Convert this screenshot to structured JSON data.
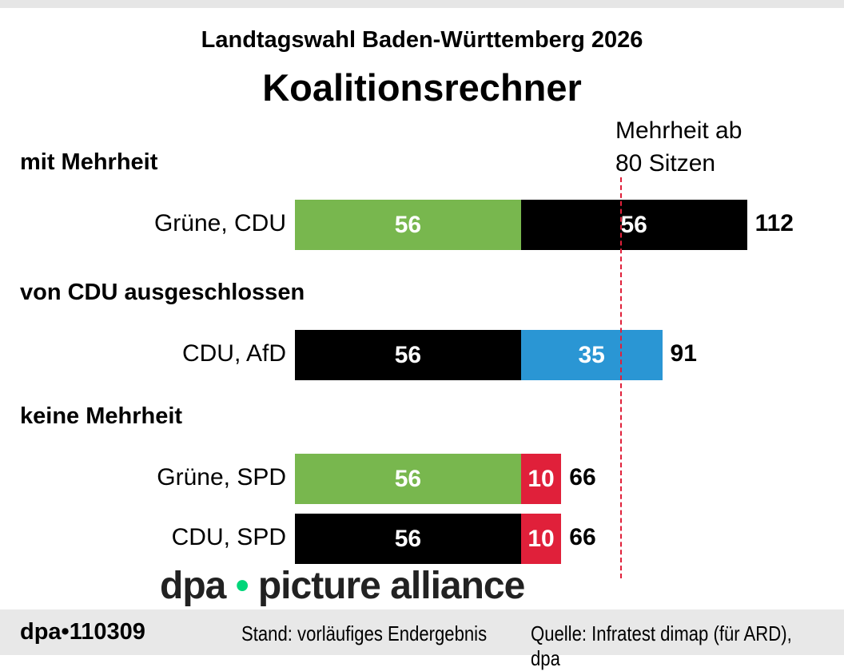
{
  "chart_data": {
    "type": "bar",
    "stacked": true,
    "orientation": "horizontal",
    "supertitle": "Landtagswahl Baden-Württemberg 2026",
    "title": "Koalitionsrechner",
    "threshold": {
      "value": 80,
      "label_line1": "Mehrheit ab",
      "label_line2": "80 Sitzen",
      "color": "#e0203a"
    },
    "xlim": [
      0,
      130
    ],
    "groups": [
      {
        "label": "mit Mehrheit",
        "rows": [
          {
            "label": "Grüne, CDU",
            "segments": [
              {
                "party": "Grüne",
                "value": 56,
                "color": "#78b74e"
              },
              {
                "party": "CDU",
                "value": 56,
                "color": "#000000"
              }
            ],
            "total": 112
          }
        ]
      },
      {
        "label": "von CDU ausgeschlossen",
        "rows": [
          {
            "label": "CDU, AfD",
            "segments": [
              {
                "party": "CDU",
                "value": 56,
                "color": "#000000"
              },
              {
                "party": "AfD",
                "value": 35,
                "color": "#2a96d4"
              }
            ],
            "total": 91
          }
        ]
      },
      {
        "label": "keine Mehrheit",
        "rows": [
          {
            "label": "Grüne, SPD",
            "segments": [
              {
                "party": "Grüne",
                "value": 56,
                "color": "#78b74e"
              },
              {
                "party": "SPD",
                "value": 10,
                "color": "#e0203a"
              }
            ],
            "total": 66
          },
          {
            "label": "CDU, SPD",
            "segments": [
              {
                "party": "CDU",
                "value": 56,
                "color": "#000000"
              },
              {
                "party": "SPD",
                "value": 10,
                "color": "#e0203a"
              }
            ],
            "total": 66
          }
        ]
      }
    ]
  },
  "footer": {
    "id": "dpa•110309",
    "stand": "Stand: vorläufiges Endergebnis",
    "quelle": "Quelle: Infratest dimap (für ARD), dpa"
  },
  "watermark": {
    "left": "dpa",
    "dot": "•",
    "right": "picture alliance"
  }
}
